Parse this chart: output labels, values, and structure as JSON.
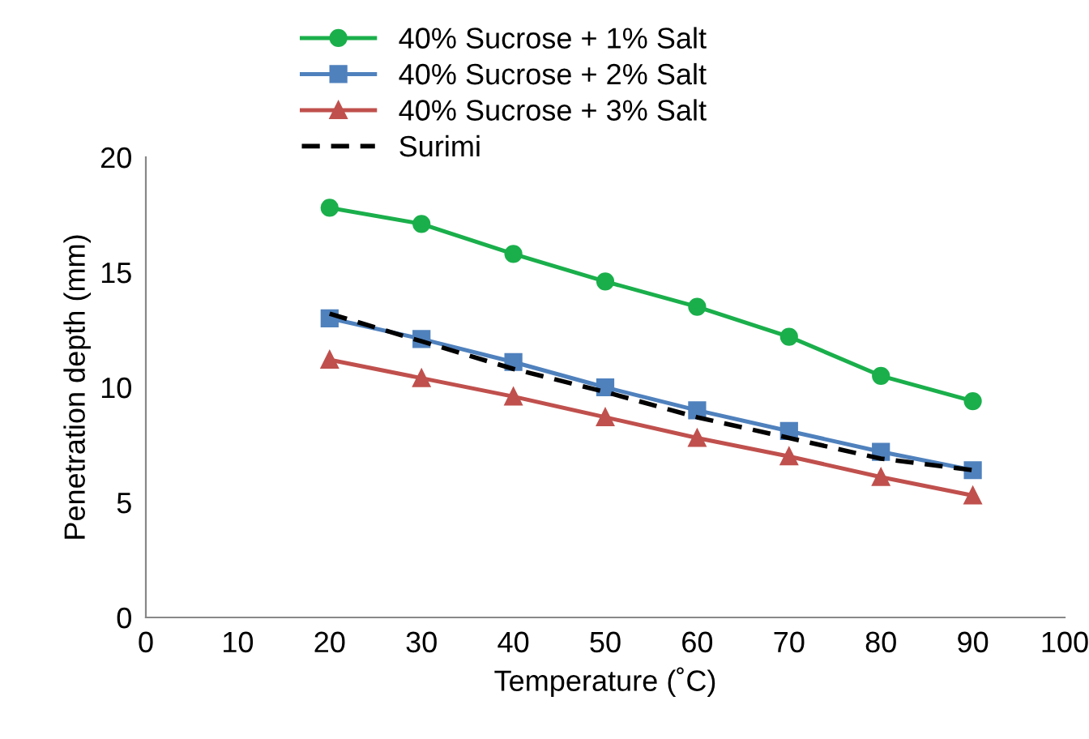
{
  "chart_data": {
    "type": "line",
    "xlabel": "Temperature (˚C)",
    "ylabel": "Penetration depth (mm)",
    "x": [
      20,
      30,
      40,
      50,
      60,
      70,
      80,
      90
    ],
    "series": [
      {
        "name": "40% Sucrose + 1% Salt",
        "color": "#1aaf4b",
        "marker": "circle",
        "values": [
          17.8,
          17.1,
          15.8,
          14.6,
          13.5,
          12.2,
          10.5,
          9.4
        ]
      },
      {
        "name": "40% Sucrose + 2% Salt",
        "color": "#4f81bd",
        "marker": "square",
        "values": [
          13.0,
          12.1,
          11.1,
          10.0,
          9.0,
          8.1,
          7.2,
          6.4
        ]
      },
      {
        "name": "40% Sucrose + 3% Salt",
        "color": "#c0504d",
        "marker": "triangle",
        "values": [
          11.2,
          10.4,
          9.6,
          8.7,
          7.8,
          7.0,
          6.1,
          5.3
        ]
      },
      {
        "name": "Surimi",
        "color": "#000000",
        "marker": "none",
        "line_style": "dashed",
        "values": [
          13.2,
          12.0,
          10.8,
          9.8,
          8.7,
          7.8,
          6.9,
          6.4
        ]
      }
    ],
    "xlim": [
      0,
      100
    ],
    "xticks": [
      0,
      10,
      20,
      30,
      40,
      50,
      60,
      70,
      80,
      90,
      100
    ],
    "ylim": [
      0,
      20
    ],
    "yticks": [
      0,
      5,
      10,
      15,
      20
    ],
    "grid": false,
    "legend": "top"
  }
}
